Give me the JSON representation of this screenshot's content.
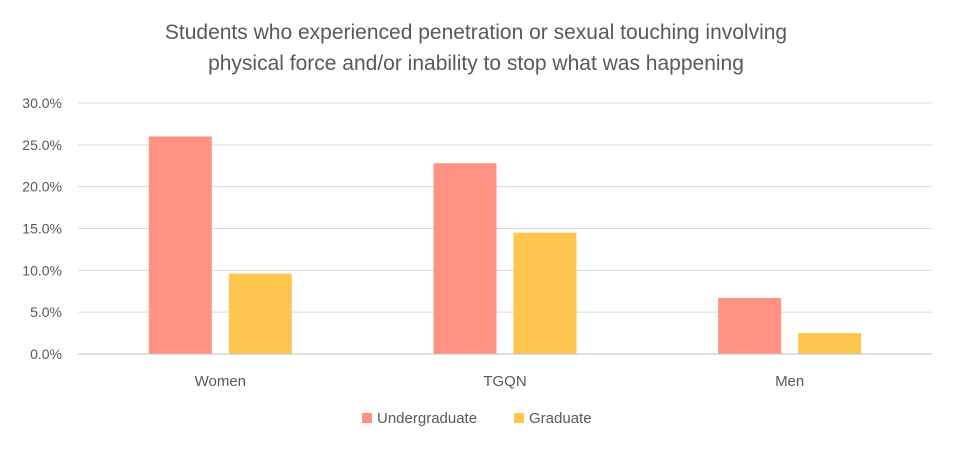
{
  "chart_data": {
    "type": "bar",
    "title_lines": [
      "Students who experienced penetration or sexual touching involving",
      "physical force and/or inability to stop what was happening"
    ],
    "categories": [
      "Women",
      "TGQN",
      "Men"
    ],
    "series": [
      {
        "name": "Undergraduate",
        "color": "#ff9282",
        "values": [
          0.26,
          0.228,
          0.067
        ]
      },
      {
        "name": "Graduate",
        "color": "#ffc54f",
        "values": [
          0.096,
          0.145,
          0.025
        ]
      }
    ],
    "ylim": [
      0,
      0.3
    ],
    "yticks": [
      0,
      0.05,
      0.1,
      0.15,
      0.2,
      0.25,
      0.3
    ],
    "ytick_labels": [
      "0.0%",
      "5.0%",
      "10.0%",
      "15.0%",
      "20.0%",
      "25.0%",
      "30.0%"
    ],
    "grid": true,
    "legend_position": "bottom"
  }
}
